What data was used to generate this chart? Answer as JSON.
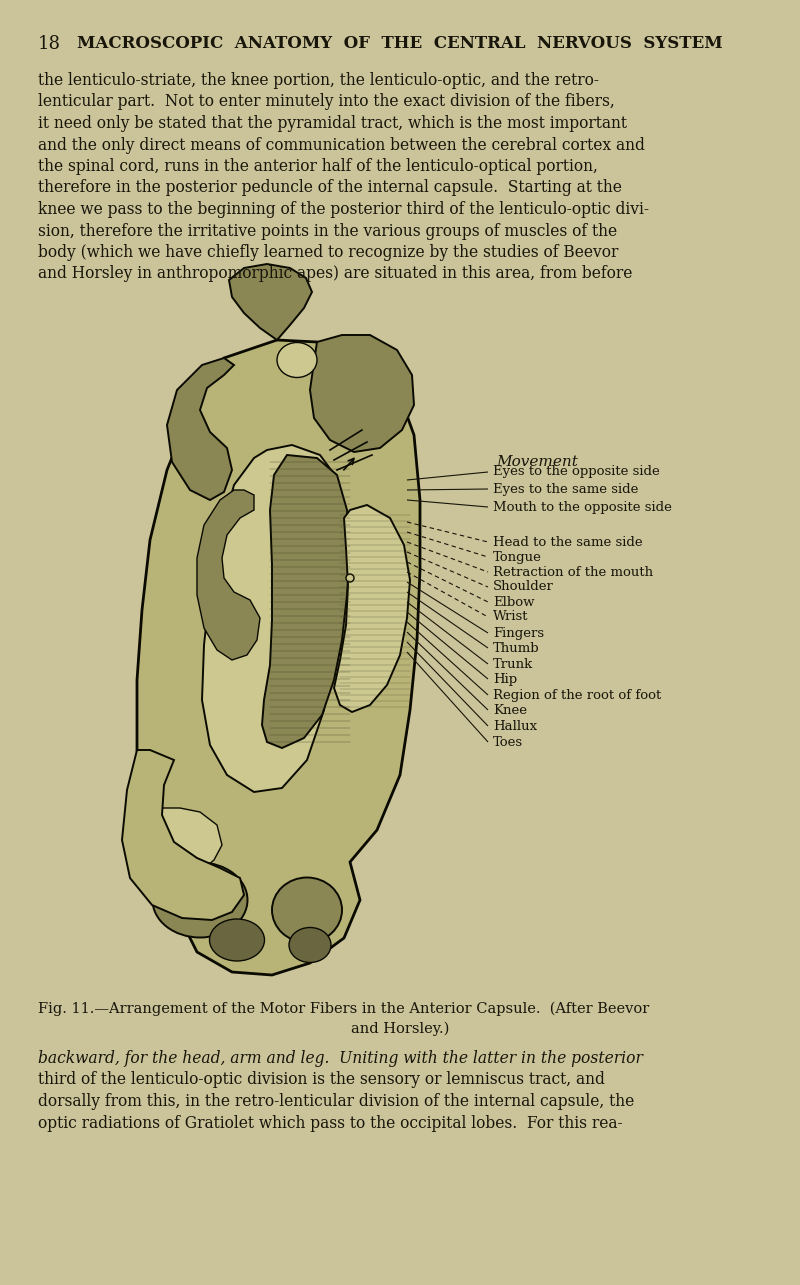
{
  "bg_color": "#cbc49a",
  "page_number": "18",
  "header_text": "MACROSCOPIC  ANATOMY  OF  THE  CENTRAL  NERVOUS  SYSTEM",
  "top_text_lines": [
    "the lenticulo-striate, the knee portion, the lenticulo-optic, and the retro-",
    "lenticular part.  Not to enter minutely into the exact division of the fibers,",
    "it need only be stated that the pyramidal tract, which is the most important",
    "and the only direct means of communication between the cerebral cortex and",
    "the spinal cord, runs in the anterior half of the lenticulo-optical portion,",
    "therefore in the posterior peduncle of the internal capsule.  Starting at the",
    "knee we pass to the beginning of the posterior third of the lenticulo-optic divi-",
    "sion, therefore the irritative points in the various groups of muscles of the",
    "body (which we have chiefly learned to recognize by the studies of Beevor",
    "and Horsley in anthropomorphic apes) are situated in this area, from before"
  ],
  "movement_label": "Movement",
  "movement_items": [
    [
      480,
      472,
      "Eyes to the opposite side",
      false
    ],
    [
      490,
      489,
      "Eyes to the same side",
      false
    ],
    [
      500,
      507,
      "Mouth to the opposite side",
      false
    ],
    [
      522,
      542,
      "Head to the same side",
      true
    ],
    [
      532,
      557,
      "Tongue",
      true
    ],
    [
      542,
      572,
      "Retraction of the mouth",
      true
    ],
    [
      552,
      587,
      "Shoulder",
      true
    ],
    [
      562,
      602,
      "Elbow",
      true
    ],
    [
      572,
      617,
      "Wrist",
      true
    ],
    [
      582,
      633,
      "Fingers",
      false
    ],
    [
      592,
      648,
      "Thumb",
      false
    ],
    [
      602,
      664,
      "Trunk",
      false
    ],
    [
      612,
      679,
      "Hip",
      false
    ],
    [
      622,
      695,
      "Region of the root of foot",
      false
    ],
    [
      632,
      710,
      "Knee",
      false
    ],
    [
      642,
      726,
      "Hallux",
      false
    ],
    [
      652,
      742,
      "Toes",
      false
    ]
  ],
  "caption_main": "Fig. 11.—Arrangement of the Motor Fibers in the Anterior Capsule.",
  "caption_credit": "(After Beevor",
  "caption_line2": "and Horsley.)",
  "bottom_text_lines": [
    "backward, for the head, arm and leg.  Uniting with the latter in the posterior",
    "third of the lenticulo-optic division is the sensory or lemniscus tract, and",
    "dorsally from this, in the retro-lenticular division of the internal capsule, the",
    "optic radiations of Gratiolet which pass to the occipital lobes.  For this rea-"
  ],
  "text_color": "#18150a",
  "outline_color": "#0a0a00",
  "fill_dark": "#6a6740",
  "fill_med": "#8a8755",
  "fill_light": "#b8b478",
  "fill_lighter": "#ccc890",
  "fill_bg": "#c8c48a"
}
